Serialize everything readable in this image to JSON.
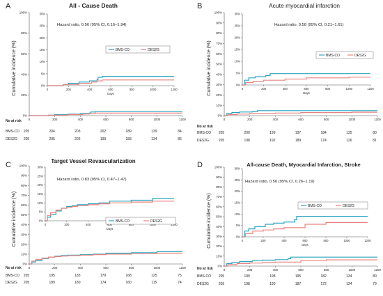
{
  "colors": {
    "bms": "#2aa4bf",
    "des": "#e9837f",
    "axis": "#555555",
    "text": "#222222"
  },
  "chart_data": [
    {
      "panel_letter": "A",
      "title": "All - Cause Death",
      "type": "line",
      "ylabel": "Cumulative incidence (%)",
      "xlabel": "",
      "xlim": [
        0,
        1200
      ],
      "ylim": [
        0,
        100
      ],
      "x_ticks": [
        0,
        200,
        400,
        600,
        800,
        1000,
        1200
      ],
      "y_ticks": [
        "0%",
        "20%",
        "40%",
        "60%",
        "80%",
        "100%"
      ],
      "series": [
        {
          "name": "BMS-CO",
          "x": [
            0,
            150,
            200,
            300,
            400,
            470,
            480,
            520,
            1200
          ],
          "y": [
            0,
            0.5,
            1.0,
            1.5,
            2.0,
            2.5,
            3.5,
            3.9,
            3.9
          ]
        },
        {
          "name": "DES2G",
          "x": [
            0,
            150,
            300,
            420,
            470,
            520,
            1200
          ],
          "y": [
            0,
            0.5,
            1.0,
            1.5,
            2.0,
            2.4,
            2.4
          ]
        }
      ],
      "inset": {
        "xlabel": "Days",
        "xlim": [
          0,
          1200
        ],
        "ylim": [
          0,
          30
        ],
        "x_ticks": [
          0,
          200,
          400,
          600,
          800,
          1000,
          1200
        ],
        "y_ticks": [
          "0%",
          "5%",
          "10%",
          "15%",
          "20%",
          "25%",
          "30%"
        ],
        "annotation": "Hazard ratio, 0.56 (95% CI, 0.16–1.94)",
        "legend": [
          "BMS-CO",
          "DES2G"
        ],
        "series": [
          {
            "name": "BMS-CO",
            "x": [
              0,
              150,
              200,
              300,
              400,
              470,
              480,
              520,
              1200
            ],
            "y": [
              0,
              0.5,
              1.0,
              1.5,
              2.0,
              2.5,
              3.5,
              3.9,
              3.9
            ]
          },
          {
            "name": "DES2G",
            "x": [
              0,
              150,
              300,
              420,
              470,
              520,
              1200
            ],
            "y": [
              0,
              0.5,
              1.0,
              1.5,
              2.0,
              2.4,
              2.4
            ]
          }
        ]
      },
      "risk_table": {
        "title": "No at risk",
        "rows": [
          {
            "label": "BMS-CO",
            "values": [
              "205",
              "204",
              "203",
              "202",
              "189",
              "139",
              "84"
            ]
          },
          {
            "label": "DES2G",
            "values": [
              "205",
              "205",
              "202",
              "199",
              "183",
              "134",
              "86"
            ]
          }
        ]
      }
    },
    {
      "panel_letter": "B",
      "title": "Acute myocardial infarction",
      "type": "line",
      "ylabel": "Cumulative incidence (%)",
      "xlabel": "",
      "xlim": [
        0,
        1200
      ],
      "ylim": [
        0,
        100
      ],
      "x_ticks": [
        0,
        200,
        400,
        600,
        800,
        1000,
        1200
      ],
      "y_ticks": [
        "0%",
        "10%",
        "20%",
        "30%",
        "40%",
        "50%",
        "60%",
        "70%",
        "80%",
        "90%",
        "100%"
      ],
      "series": [
        {
          "name": "BMS-CO",
          "x": [
            0,
            20,
            60,
            120,
            220,
            260,
            1200
          ],
          "y": [
            0,
            2.0,
            3.0,
            3.5,
            4.0,
            4.8,
            4.8
          ]
        },
        {
          "name": "DES2G",
          "x": [
            0,
            30,
            100,
            200,
            400,
            600,
            1000,
            1200
          ],
          "y": [
            0,
            1.0,
            1.5,
            2.0,
            2.5,
            3.0,
            3.3,
            3.3
          ]
        }
      ],
      "inset": {
        "xlabel": "Days",
        "xlim": [
          0,
          1200
        ],
        "ylim": [
          0,
          30
        ],
        "x_ticks": [
          0,
          200,
          400,
          600,
          800,
          1000,
          1200
        ],
        "y_ticks": [
          "0%",
          "5%",
          "10%",
          "15%",
          "20%",
          "25%",
          "30%"
        ],
        "annotation": "Hazard ratio, 0.58 (95% CI, 0.21–1.61)",
        "legend": [
          "BMS-CO",
          "DES2G"
        ],
        "series": [
          {
            "name": "BMS-CO",
            "x": [
              0,
              20,
              60,
              120,
              220,
              260,
              1200
            ],
            "y": [
              0,
              2.0,
              3.0,
              3.5,
              4.0,
              4.8,
              4.8
            ]
          },
          {
            "name": "DES2G",
            "x": [
              0,
              30,
              100,
              200,
              400,
              600,
              1000,
              1200
            ],
            "y": [
              0,
              1.0,
              1.5,
              2.0,
              2.5,
              3.0,
              3.3,
              3.3
            ]
          }
        ]
      },
      "risk_table": {
        "title": "No at risk",
        "rows": [
          {
            "label": "BMS-CO",
            "values": [
              "205",
              "200",
              "199",
              "197",
              "184",
              "135",
              "80"
            ]
          },
          {
            "label": "DES2G",
            "values": [
              "205",
              "198",
              "192",
              "189",
              "174",
              "126",
              "81"
            ]
          }
        ]
      }
    },
    {
      "panel_letter": "C",
      "title": "Target Vessel Revascularization",
      "type": "line",
      "ylabel": "Cumulative incidence (%)",
      "xlabel": "",
      "xlim": [
        0,
        1200
      ],
      "ylim": [
        0,
        100
      ],
      "x_ticks": [
        0,
        200,
        400,
        600,
        800,
        1000,
        1200
      ],
      "y_ticks": [
        "0%",
        "10%",
        "20%",
        "30%",
        "40%",
        "50%",
        "60%",
        "70%",
        "80%",
        "90%",
        "100%"
      ],
      "series": [
        {
          "name": "BMS-CO",
          "x": [
            0,
            20,
            50,
            100,
            150,
            200,
            250,
            300,
            400,
            500,
            600,
            800,
            1000,
            1200
          ],
          "y": [
            0,
            2,
            3.5,
            5.5,
            7,
            8,
            8.5,
            9,
            9.5,
            10,
            11,
            11.5,
            12.5,
            12.5
          ]
        },
        {
          "name": "DES2G",
          "x": [
            0,
            20,
            50,
            100,
            150,
            200,
            250,
            300,
            400,
            500,
            600,
            800,
            1000,
            1200
          ],
          "y": [
            0,
            3,
            4.5,
            6,
            7,
            7.5,
            8,
            8.5,
            9,
            9.5,
            10,
            10.5,
            11,
            11
          ]
        }
      ],
      "inset": {
        "xlabel": "Days",
        "xlim": [
          0,
          1200
        ],
        "ylim": [
          0,
          30
        ],
        "x_ticks": [
          0,
          200,
          400,
          600,
          800,
          1000,
          1200
        ],
        "y_ticks": [
          "0%",
          "5%",
          "10%",
          "15%",
          "20%",
          "25%",
          "30%"
        ],
        "annotation": "Hazard ratio, 0.83 (95% CI, 0.47–1.47)",
        "legend": [
          "BMS-CO",
          "DES2G"
        ],
        "series": [
          {
            "name": "BMS-CO",
            "x": [
              0,
              20,
              50,
              100,
              150,
              200,
              250,
              300,
              400,
              500,
              600,
              800,
              1000,
              1200
            ],
            "y": [
              0,
              2,
              3.5,
              5.5,
              7,
              8,
              8.5,
              9,
              9.5,
              10,
              11,
              11.5,
              12.5,
              12.5
            ]
          },
          {
            "name": "DES2G",
            "x": [
              0,
              20,
              50,
              100,
              150,
              200,
              250,
              300,
              400,
              500,
              600,
              800,
              1000,
              1200
            ],
            "y": [
              0,
              3,
              4.5,
              6,
              7,
              7.5,
              8,
              8.5,
              9,
              9.5,
              10,
              10.5,
              11,
              11
            ]
          }
        ]
      },
      "risk_table": {
        "title": "No at risk",
        "rows": [
          {
            "label": "BMS-CO",
            "values": [
              "205",
              "195",
              "183",
              "179",
              "168",
              "125",
              "75"
            ]
          },
          {
            "label": "DES2G",
            "values": [
              "205",
              "189",
              "180",
              "174",
              "160",
              "115",
              "74"
            ]
          }
        ]
      }
    },
    {
      "panel_letter": "D",
      "title": "All-cause Death, Myocardial Infarction, Stroke",
      "type": "line",
      "ylabel": "Cumulative incidence (%)",
      "xlabel": "",
      "xlim": [
        0,
        1200
      ],
      "ylim": [
        0,
        100
      ],
      "x_ticks": [
        0,
        200,
        400,
        600,
        800,
        1000,
        1200
      ],
      "y_ticks": [
        "0%",
        "10%",
        "20%",
        "30%",
        "40%",
        "50%",
        "60%",
        "70%",
        "80%",
        "90%",
        "100%"
      ],
      "series": [
        {
          "name": "BMS-CO",
          "x": [
            0,
            20,
            60,
            120,
            220,
            300,
            400,
            500,
            520,
            1200
          ],
          "y": [
            0,
            2.5,
            3.5,
            4.5,
            5.5,
            6,
            6.5,
            7.5,
            9,
            9
          ]
        },
        {
          "name": "DES2G",
          "x": [
            0,
            30,
            100,
            200,
            300,
            400,
            600,
            800,
            1200
          ],
          "y": [
            0,
            1.5,
            2.5,
            3,
            3.5,
            4,
            5.5,
            6.3,
            6.3
          ]
        }
      ],
      "inset": {
        "xlabel": "Days",
        "xlim": [
          0,
          1200
        ],
        "ylim": [
          0,
          30
        ],
        "x_ticks": [
          0,
          200,
          400,
          600,
          800,
          1000,
          1200
        ],
        "y_ticks": [
          "0%",
          "5%",
          "10%",
          "15%",
          "20%",
          "25%",
          "30%"
        ],
        "annotation": "Hazard ratio, 0.56 (95% CI, 0.26–1.19)",
        "legend": [
          "BMS-CO",
          "DES2G"
        ],
        "series": [
          {
            "name": "BMS-CO",
            "x": [
              0,
              20,
              60,
              120,
              220,
              300,
              400,
              500,
              520,
              1200
            ],
            "y": [
              0,
              2.5,
              3.5,
              4.5,
              5.5,
              6,
              6.5,
              7.5,
              9,
              9
            ]
          },
          {
            "name": "DES2G",
            "x": [
              0,
              30,
              100,
              200,
              300,
              400,
              600,
              800,
              1200
            ],
            "y": [
              0,
              1.5,
              2.5,
              3,
              3.5,
              4,
              5.5,
              6.3,
              6.3
            ]
          }
        ]
      },
      "risk_table": {
        "title": "No at risk",
        "rows": [
          {
            "label": "BMS-CO",
            "values": [
              "205",
              "199",
              "198",
              "195",
              "182",
              "134",
              "80"
            ]
          },
          {
            "label": "DES2G",
            "values": [
              "205",
              "198",
              "190",
              "187",
              "172",
              "124",
              "79"
            ]
          }
        ]
      }
    }
  ]
}
